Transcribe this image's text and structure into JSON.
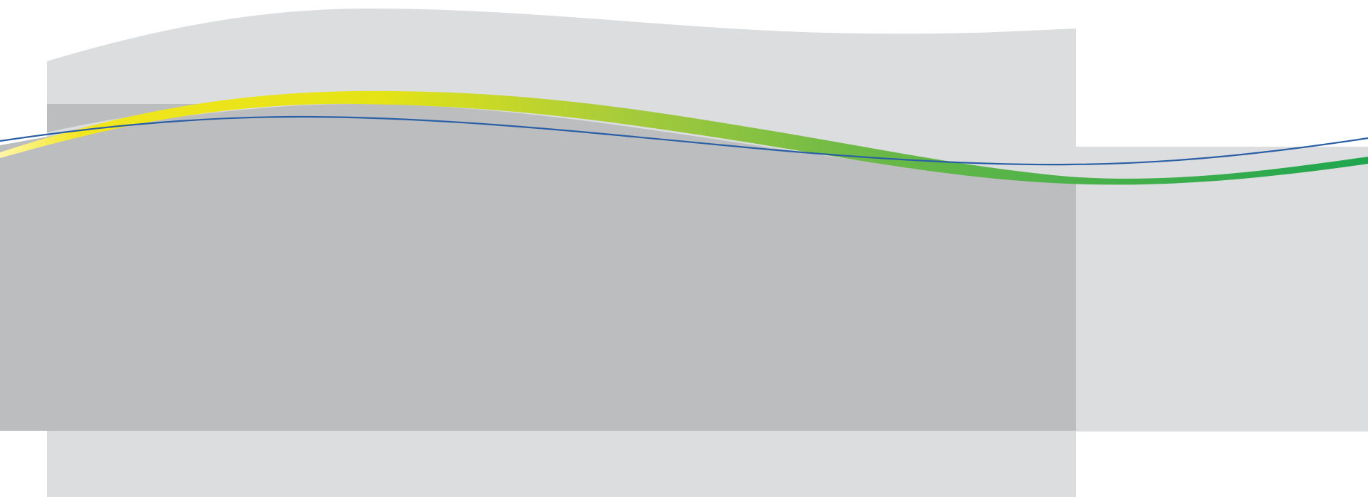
{
  "colors": {
    "background": "#ffffff",
    "panel_light": "#dcdddf",
    "panel_dark": "#bcbdbf",
    "ribbon_yellow": "#f0e61a",
    "ribbon_green": "#2fae4e",
    "line_blue": "#2a5fa6"
  }
}
